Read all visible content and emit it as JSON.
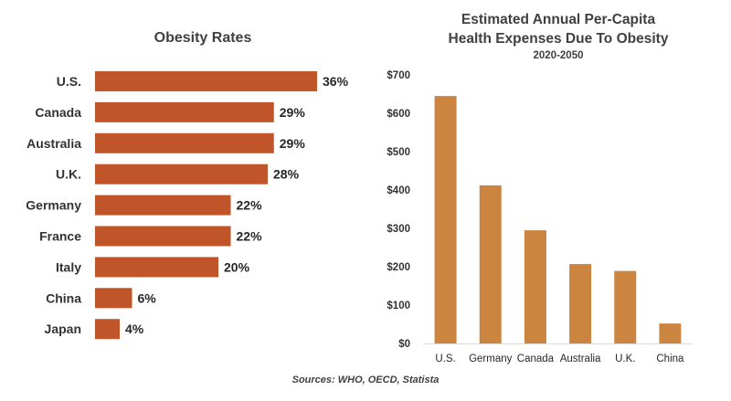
{
  "chart_data": [
    {
      "type": "bar",
      "orientation": "horizontal",
      "title": "Obesity Rates",
      "categories": [
        "U.S.",
        "Canada",
        "Australia",
        "U.K.",
        "Germany",
        "France",
        "Italy",
        "China",
        "Japan"
      ],
      "values": [
        36,
        29,
        29,
        28,
        22,
        22,
        20,
        6,
        4
      ],
      "value_labels": [
        "36%",
        "29%",
        "29%",
        "28%",
        "22%",
        "22%",
        "20%",
        "6%",
        "4%"
      ],
      "unit": "%",
      "color": "#C0552A",
      "grid": false,
      "legend": "none"
    },
    {
      "type": "bar",
      "orientation": "vertical",
      "title": "Estimated Annual Per-Capita Health Expenses Due To Obesity",
      "title_lines": [
        "Estimated Annual Per-Capita",
        "Health Expenses Due To Obesity"
      ],
      "subtitle": "2020-2050",
      "categories": [
        "U.S.",
        "Germany",
        "Canada",
        "Australia",
        "U.K.",
        "China"
      ],
      "values": [
        645,
        412,
        295,
        207,
        189,
        52
      ],
      "ylim": [
        0,
        700
      ],
      "yticks": [
        0,
        100,
        200,
        300,
        400,
        500,
        600,
        700
      ],
      "ytick_labels": [
        "$0",
        "$100",
        "$200",
        "$300",
        "$400",
        "$500",
        "$600",
        "$700"
      ],
      "color": "#CC8540",
      "grid": false,
      "legend": "none"
    }
  ],
  "source": "Sources: WHO, OECD, Statista"
}
